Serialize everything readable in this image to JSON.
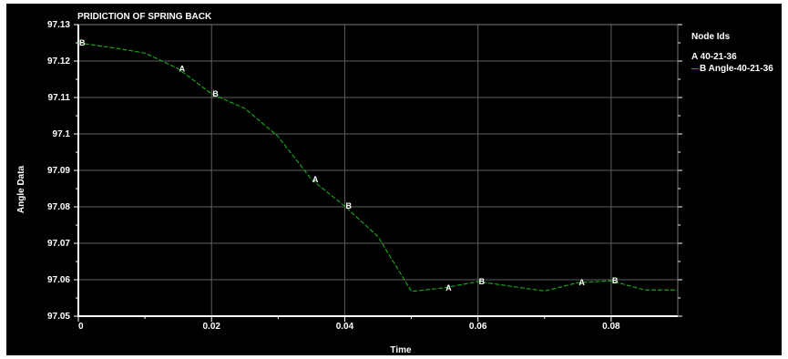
{
  "chart_data": {
    "type": "line",
    "title": "PRIDICTION OF SPRING BACK",
    "xlabel": "Time",
    "ylabel": "Angle Data",
    "xlim": [
      0,
      0.09
    ],
    "ylim": [
      97.05,
      97.13
    ],
    "x_ticks": [
      0,
      0.02,
      0.04,
      0.06,
      0.08
    ],
    "x_tick_labels": [
      "0",
      "0.02",
      "0.04",
      "0.06",
      "0.08"
    ],
    "y_ticks": [
      97.05,
      97.06,
      97.07,
      97.08,
      97.09,
      97.1,
      97.11,
      97.12,
      97.13
    ],
    "y_tick_labels": [
      "97.05",
      "97.06",
      "97.07",
      "97.08",
      "97.09",
      "97.1",
      "97.11",
      "97.12",
      "97.13"
    ],
    "grid": true,
    "legend_placement": "right",
    "legend_title": "Node Ids",
    "series": [
      {
        "name": "40-21-36",
        "legend_label": "A  40-21-36",
        "marker_letter": "A",
        "color": "#1aa51a",
        "x": [
          0,
          0.005,
          0.01,
          0.015,
          0.02,
          0.025,
          0.03,
          0.035,
          0.04,
          0.045,
          0.05,
          0.055,
          0.06,
          0.065,
          0.07,
          0.075,
          0.08,
          0.085,
          0.09
        ],
        "y": [
          97.125,
          97.1237,
          97.1222,
          97.1179,
          97.111,
          97.107,
          97.0993,
          97.0875,
          97.0802,
          97.0718,
          97.0568,
          97.0578,
          97.0595,
          97.0582,
          97.0569,
          97.0592,
          97.0597,
          97.0572,
          97.0572
        ],
        "marker_x": [
          0.015,
          0.035,
          0.055,
          0.075
        ]
      },
      {
        "name": "Angle-40-21-36",
        "legend_label": "B  Angle-40-21-36",
        "marker_letter": "B",
        "color": "#1aa51a",
        "x": [
          0,
          0.005,
          0.01,
          0.015,
          0.02,
          0.025,
          0.03,
          0.035,
          0.04,
          0.045,
          0.05,
          0.055,
          0.06,
          0.065,
          0.07,
          0.075,
          0.08,
          0.085,
          0.09
        ],
        "y": [
          97.125,
          97.1237,
          97.1222,
          97.1179,
          97.111,
          97.107,
          97.0993,
          97.0875,
          97.0802,
          97.0718,
          97.0568,
          97.0578,
          97.0595,
          97.0582,
          97.0569,
          97.0592,
          97.0597,
          97.0572,
          97.0572
        ],
        "marker_x": [
          0,
          0.02,
          0.04,
          0.06,
          0.08
        ]
      }
    ]
  }
}
